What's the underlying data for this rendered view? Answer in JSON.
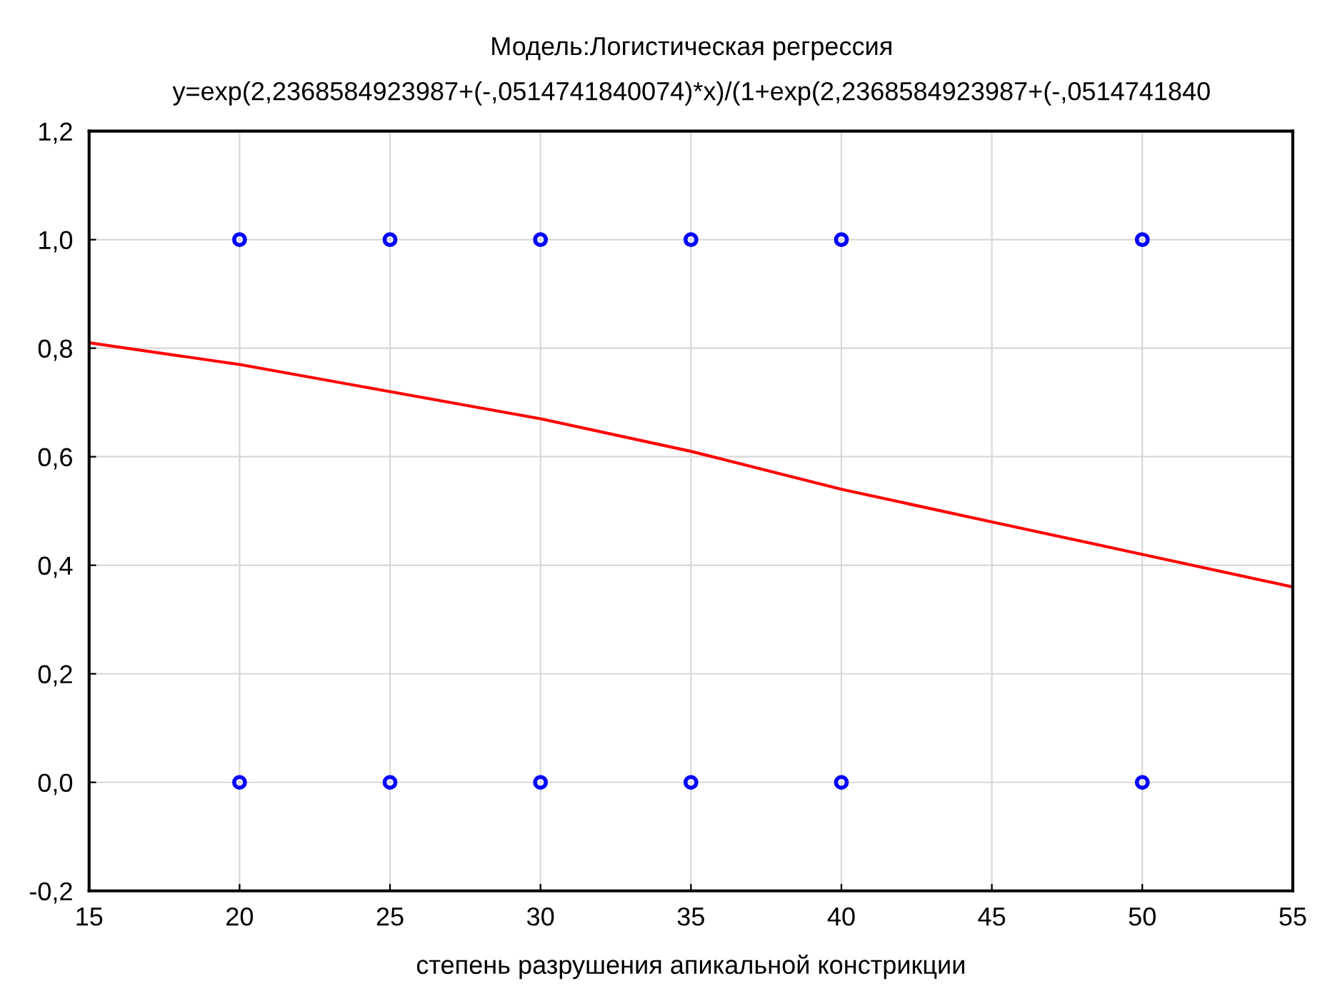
{
  "chart_data": {
    "type": "scatter",
    "title": "Модель:Логистическая регрессия",
    "subtitle": "y=exp(2,2368584923987+(-,0514741840074)*x)/(1+exp(2,2368584923987+(-,0514741840",
    "xlabel": "степень разрушения апикальной констрикции",
    "series": [
      {
        "color": "#0000ff",
        "marker": "circle",
        "x": [
          20,
          25,
          30,
          35,
          40,
          50,
          20,
          25,
          30,
          35,
          40,
          50
        ],
        "values": [
          1,
          1,
          1,
          1,
          1,
          1,
          0,
          0,
          0,
          0,
          0,
          0
        ]
      },
      {
        "type": "line",
        "color": "#ff0000",
        "marker": "none",
        "line_style": "solid",
        "x": [
          15,
          20,
          25,
          30,
          35,
          40,
          45,
          50,
          55
        ],
        "values": [
          0.81,
          0.77,
          0.72,
          0.67,
          0.61,
          0.54,
          0.48,
          0.42,
          0.36
        ]
      }
    ],
    "xlim": [
      15,
      55
    ],
    "ylim": [
      -0.2,
      1.2
    ],
    "xticks": [
      15,
      20,
      25,
      30,
      35,
      40,
      45,
      50,
      55
    ],
    "yticks": [
      {
        "value": -0.2,
        "label": "-0,2"
      },
      {
        "value": 0,
        "label": "0,0"
      },
      {
        "value": 0.2,
        "label": "0,2"
      },
      {
        "value": 0.4,
        "label": "0,4"
      },
      {
        "value": 0.6,
        "label": "0,6"
      },
      {
        "value": 0.8,
        "label": "0,8"
      },
      {
        "value": 1.0,
        "label": "1,0"
      },
      {
        "value": 1.2,
        "label": "1,2"
      }
    ],
    "grid": true,
    "legend": false
  }
}
